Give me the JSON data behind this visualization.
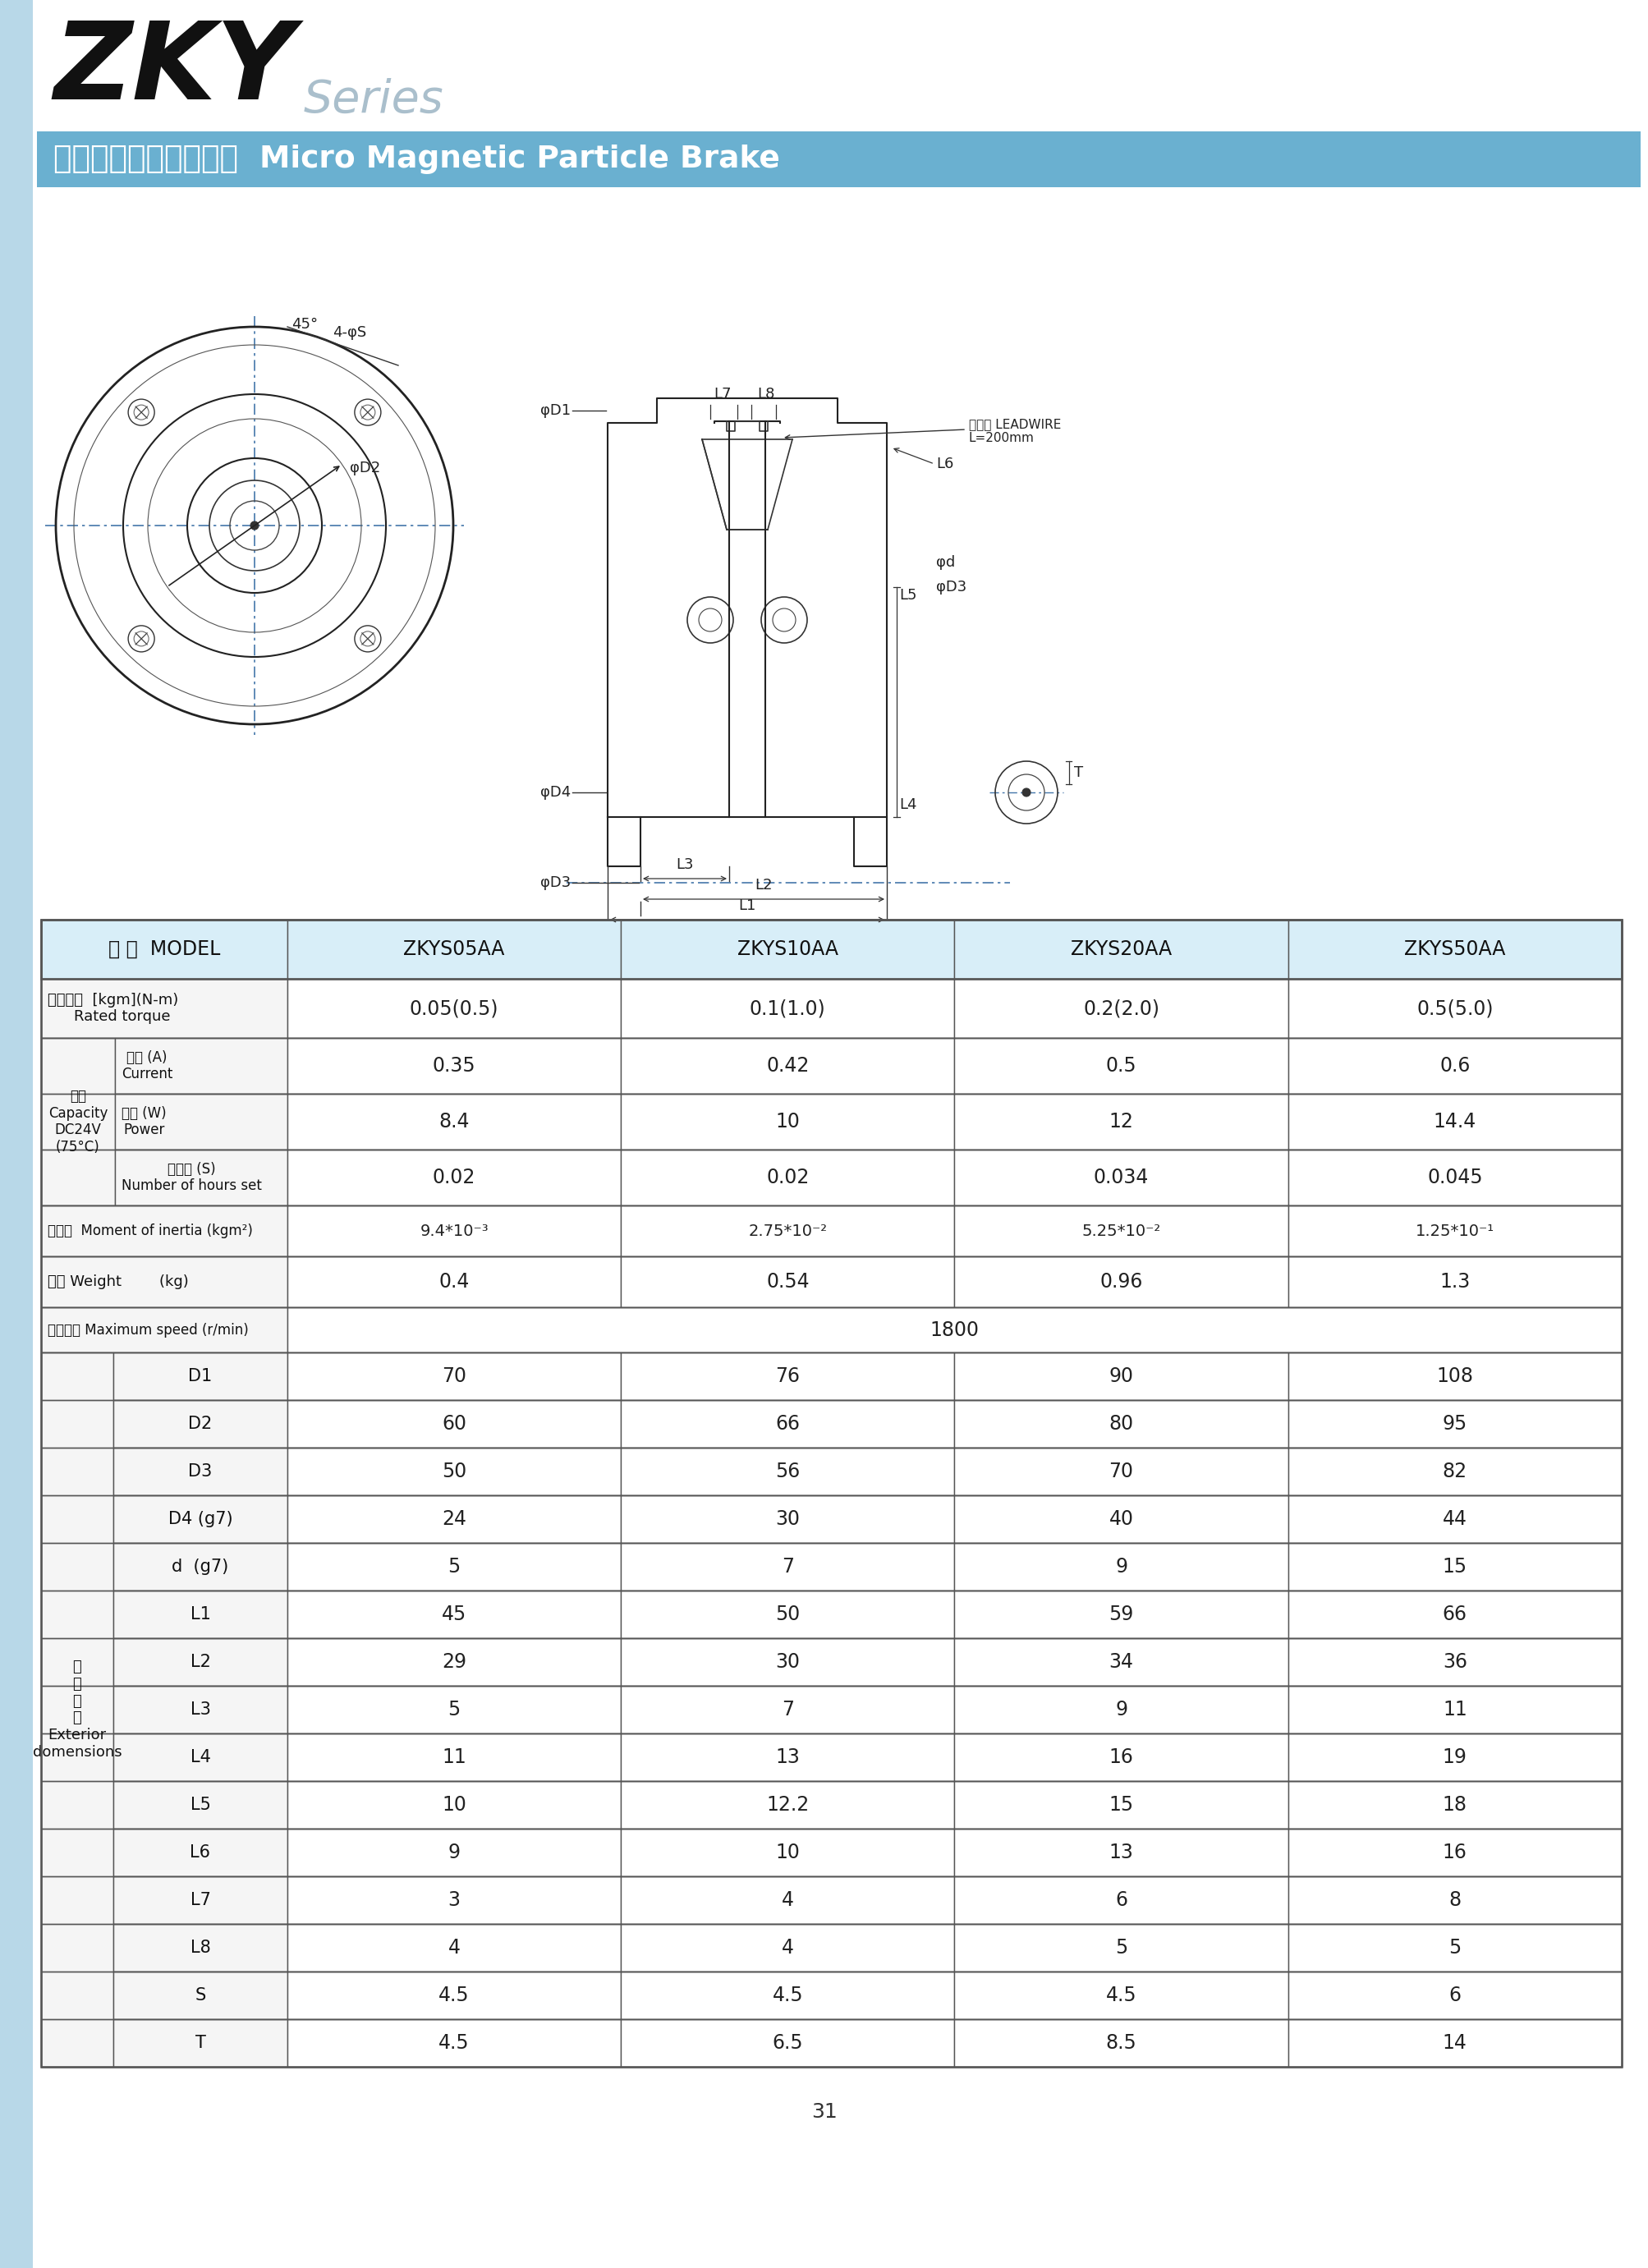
{
  "page_bg": "#ffffff",
  "left_bar_color": "#b8d8e8",
  "subtitle_bar_color": "#6ab0d0",
  "header_row_bg": "#d8eef8",
  "label_row_bg": "#f5f5f5",
  "table_border_color": "#555555",
  "table_inner_color": "#888888",
  "text_dark": "#111111",
  "text_value": "#222222",
  "table_headers": [
    "型 號  MODEL",
    "ZKYS05AA",
    "ZKYS10AA",
    "ZKYS20AA",
    "ZKYS50AA"
  ],
  "row_rated_torque_label": "定格轉距  [kgm](N-m)\n    Rated torque",
  "row_rated_torque_vals": [
    "0.05(0.5)",
    "0.1(1.0)",
    "0.2(2.0)",
    "0.5(5.0)"
  ],
  "capacity_group_label": "容量\nCapacity\nDC24V\n(75°C)",
  "cap_subrow1_label": "電流 (A)\nCurrent",
  "cap_subrow1_vals": [
    "0.35",
    "0.42",
    "0.5",
    "0.6"
  ],
  "cap_subrow2_label": "電力 (W)\nPower",
  "cap_subrow2_vals": [
    "8.4",
    "10",
    "12",
    "14.4"
  ],
  "cap_subrow3_label": "時定數 (S)\nNumber of hours set",
  "cap_subrow3_vals": [
    "0.02",
    "0.02",
    "0.034",
    "0.045"
  ],
  "inertia_label": "慣性矩  Moment of inertia (kgm²)",
  "inertia_vals": [
    "9.4*10⁻³",
    "2.75*10⁻²",
    "5.25*10⁻²",
    "1.25*10⁻¹"
  ],
  "weight_label": "重量 Weight        (kg)",
  "weight_vals": [
    "0.4",
    "0.54",
    "0.96",
    "1.3"
  ],
  "max_speed_label": "最高轉速 Maximum speed (r/min)",
  "max_speed_val": "1800",
  "ext_group_label": "外\n型\n尺\n寸\nExterior\ndomensions",
  "ext_rows": [
    {
      "label": "D1",
      "vals": [
        "70",
        "76",
        "90",
        "108"
      ]
    },
    {
      "label": "D2",
      "vals": [
        "60",
        "66",
        "80",
        "95"
      ]
    },
    {
      "label": "D3",
      "vals": [
        "50",
        "56",
        "70",
        "82"
      ]
    },
    {
      "label": "D4 (g7)",
      "vals": [
        "24",
        "30",
        "40",
        "44"
      ]
    },
    {
      "label": "d  (g7)",
      "vals": [
        "5",
        "7",
        "9",
        "15"
      ]
    },
    {
      "label": "L1",
      "vals": [
        "45",
        "50",
        "59",
        "66"
      ]
    },
    {
      "label": "L2",
      "vals": [
        "29",
        "30",
        "34",
        "36"
      ]
    },
    {
      "label": "L3",
      "vals": [
        "5",
        "7",
        "9",
        "11"
      ]
    },
    {
      "label": "L4",
      "vals": [
        "11",
        "13",
        "16",
        "19"
      ]
    },
    {
      "label": "L5",
      "vals": [
        "10",
        "12.2",
        "15",
        "18"
      ]
    },
    {
      "label": "L6",
      "vals": [
        "9",
        "10",
        "13",
        "16"
      ]
    },
    {
      "label": "L7",
      "vals": [
        "3",
        "4",
        "6",
        "8"
      ]
    },
    {
      "label": "L8",
      "vals": [
        "4",
        "4",
        "5",
        "5"
      ]
    },
    {
      "label": "S",
      "vals": [
        "4.5",
        "4.5",
        "4.5",
        "6"
      ]
    },
    {
      "label": "T",
      "vals": [
        "4.5",
        "6.5",
        "8.5",
        "14"
      ]
    }
  ],
  "page_number": "31"
}
